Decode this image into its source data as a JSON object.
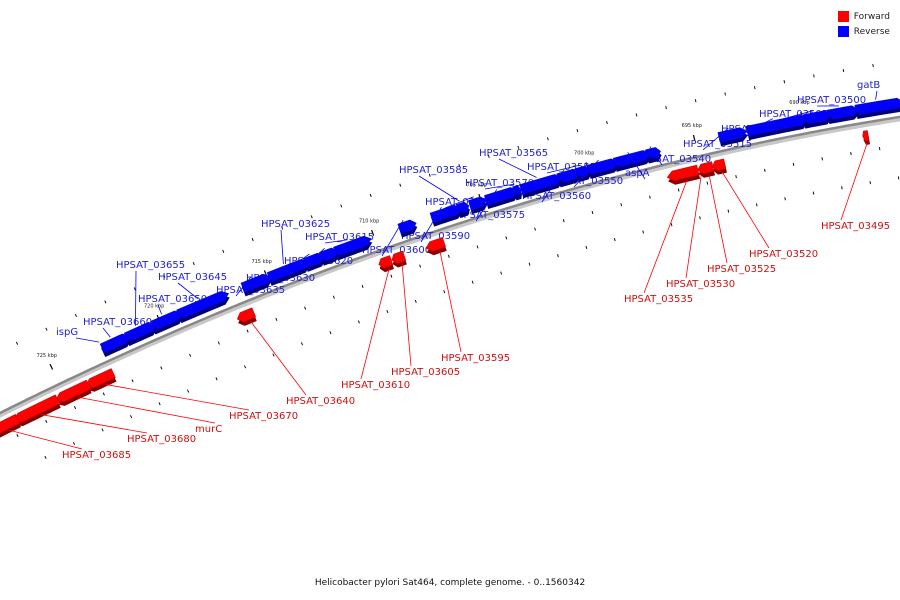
{
  "colors": {
    "forward": "#ff0000",
    "reverse": "#0000ff",
    "backbone": "#888888"
  },
  "legend": [
    {
      "label": "Forward",
      "color": "#ff0000"
    },
    {
      "label": "Reverse",
      "color": "#0000ff"
    }
  ],
  "caption": "Helicobacter pylori Sat464, complete genome. - 0..1560342",
  "scale_ticks": [
    {
      "label": "690 kbp",
      "kbp": 690
    },
    {
      "label": "695 kbp",
      "kbp": 695
    },
    {
      "label": "700 kbp",
      "kbp": 700
    },
    {
      "label": "705 kbp",
      "kbp": 705
    },
    {
      "label": "710 kbp",
      "kbp": 710
    },
    {
      "label": "715 kbp",
      "kbp": 715
    },
    {
      "label": "720 kbp",
      "kbp": 720
    },
    {
      "label": "725 kbp",
      "kbp": 725
    }
  ],
  "genes": [
    {
      "name": "gatB",
      "strand": "reverse"
    },
    {
      "name": "HPSAT_03500",
      "strand": "reverse"
    },
    {
      "name": "HPSAT_03505",
      "strand": "reverse"
    },
    {
      "name": "HPSAT_03510",
      "strand": "reverse"
    },
    {
      "name": "HPSAT_03515",
      "strand": "reverse"
    },
    {
      "name": "HPSAT_03540",
      "strand": "reverse"
    },
    {
      "name": "aspA",
      "strand": "reverse"
    },
    {
      "name": "HPSAT_03550",
      "strand": "reverse"
    },
    {
      "name": "HPSAT_03555",
      "strand": "reverse"
    },
    {
      "name": "HPSAT_03560",
      "strand": "reverse"
    },
    {
      "name": "HPSAT_03565",
      "strand": "reverse"
    },
    {
      "name": "HPSAT_03570",
      "strand": "reverse"
    },
    {
      "name": "HPSAT_03575",
      "strand": "reverse"
    },
    {
      "name": "HPSAT_03580",
      "strand": "reverse"
    },
    {
      "name": "HPSAT_03585",
      "strand": "reverse"
    },
    {
      "name": "HPSAT_03590",
      "strand": "reverse"
    },
    {
      "name": "HPSAT_03600",
      "strand": "reverse"
    },
    {
      "name": "HPSAT_03615",
      "strand": "reverse"
    },
    {
      "name": "HPSAT_03620",
      "strand": "reverse"
    },
    {
      "name": "HPSAT_03625",
      "strand": "reverse"
    },
    {
      "name": "HPSAT_03630",
      "strand": "reverse"
    },
    {
      "name": "HPSAT_03635",
      "strand": "reverse"
    },
    {
      "name": "HPSAT_03645",
      "strand": "reverse"
    },
    {
      "name": "HPSAT_03650",
      "strand": "reverse"
    },
    {
      "name": "HPSAT_03655",
      "strand": "reverse"
    },
    {
      "name": "HPSAT_03660",
      "strand": "reverse"
    },
    {
      "name": "ispG",
      "strand": "reverse"
    },
    {
      "name": "HPSAT_03495",
      "strand": "forward"
    },
    {
      "name": "HPSAT_03520",
      "strand": "forward"
    },
    {
      "name": "HPSAT_03525",
      "strand": "forward"
    },
    {
      "name": "HPSAT_03530",
      "strand": "forward"
    },
    {
      "name": "HPSAT_03535",
      "strand": "forward"
    },
    {
      "name": "HPSAT_03595",
      "strand": "forward"
    },
    {
      "name": "HPSAT_03605",
      "strand": "forward"
    },
    {
      "name": "HPSAT_03610",
      "strand": "forward"
    },
    {
      "name": "HPSAT_03640",
      "strand": "forward"
    },
    {
      "name": "HPSAT_03670",
      "strand": "forward"
    },
    {
      "name": "murC",
      "strand": "forward"
    },
    {
      "name": "HPSAT_03680",
      "strand": "forward"
    },
    {
      "name": "HPSAT_03685",
      "strand": "forward"
    }
  ]
}
